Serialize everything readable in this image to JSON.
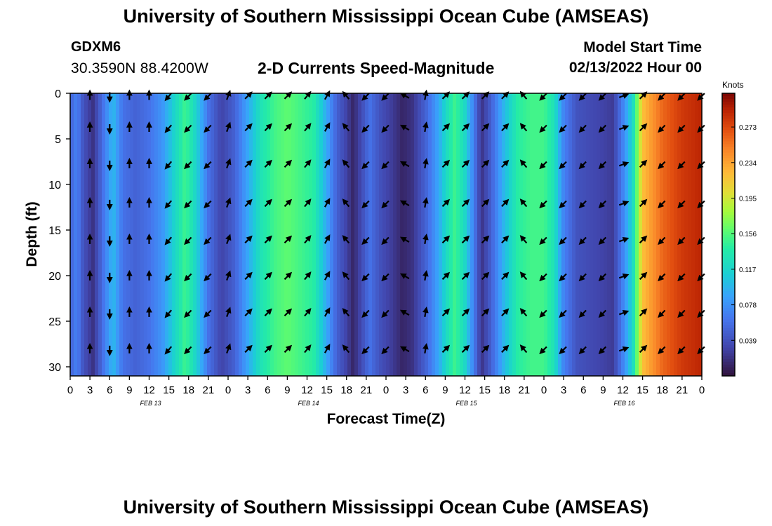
{
  "header": {
    "title": "University of Southern Mississippi Ocean Cube (AMSEAS)",
    "station": "GDXM6",
    "coordinates": "30.3590N  88.4200W",
    "subtitle": "2-D Currents Speed-Magnitude",
    "model_start_label": "Model Start Time",
    "model_start_value": "02/13/2022 Hour 00"
  },
  "footer": {
    "title": "University of Southern Mississippi Ocean Cube (AMSEAS)"
  },
  "chart_data": {
    "type": "heatmap",
    "title": "2-D Currents Speed-Magnitude",
    "xlabel": "Forecast Time(Z)",
    "ylabel": "Depth (ft)",
    "x_hours": [
      0,
      3,
      6,
      9,
      12,
      15,
      18,
      21,
      24,
      27,
      30,
      33,
      36,
      39,
      42,
      45,
      48,
      51,
      54,
      57,
      60,
      63,
      66,
      69,
      72,
      75,
      78,
      81,
      84,
      87,
      90,
      93,
      96
    ],
    "x_tick_labels": [
      "0",
      "3",
      "6",
      "9",
      "12",
      "15",
      "18",
      "21",
      "0",
      "3",
      "6",
      "9",
      "12",
      "15",
      "18",
      "21",
      "0",
      "3",
      "6",
      "9",
      "12",
      "15",
      "18",
      "21",
      "0",
      "3",
      "6",
      "9",
      "12",
      "15",
      "18",
      "21",
      "0"
    ],
    "xlim": [
      0,
      96
    ],
    "day_labels": [
      {
        "label": "FEB 13",
        "hour": 12
      },
      {
        "label": "FEB 14",
        "hour": 36
      },
      {
        "label": "FEB 15",
        "hour": 60
      },
      {
        "label": "FEB 16",
        "hour": 84
      }
    ],
    "y_ticks": [
      0,
      5,
      10,
      15,
      20,
      25,
      30
    ],
    "y_tick_labels": [
      "0",
      "5",
      "10",
      "15",
      "20",
      "25",
      "30"
    ],
    "ylim": [
      0,
      31
    ],
    "colorbar": {
      "label": "Knots",
      "ticks": [
        0.039,
        0.078,
        0.117,
        0.156,
        0.195,
        0.234,
        0.273
      ],
      "tick_labels": [
        "0.039",
        "0.078",
        "0.117",
        "0.156",
        "0.195",
        "0.234",
        "0.273"
      ],
      "range": [
        0,
        0.31
      ]
    },
    "speed_profile": [
      {
        "t": 0,
        "v": 0.05
      },
      {
        "t": 1,
        "v": 0.07
      },
      {
        "t": 2,
        "v": 0.04
      },
      {
        "t": 3.5,
        "v": 0.02
      },
      {
        "t": 5,
        "v": 0.06
      },
      {
        "t": 6.5,
        "v": 0.1
      },
      {
        "t": 8,
        "v": 0.06
      },
      {
        "t": 10,
        "v": 0.05
      },
      {
        "t": 12,
        "v": 0.06
      },
      {
        "t": 14,
        "v": 0.08
      },
      {
        "t": 16,
        "v": 0.12
      },
      {
        "t": 17.5,
        "v": 0.15
      },
      {
        "t": 19,
        "v": 0.12
      },
      {
        "t": 21,
        "v": 0.06
      },
      {
        "t": 23,
        "v": 0.03
      },
      {
        "t": 25,
        "v": 0.05
      },
      {
        "t": 27,
        "v": 0.09
      },
      {
        "t": 29,
        "v": 0.13
      },
      {
        "t": 31,
        "v": 0.15
      },
      {
        "t": 33,
        "v": 0.16
      },
      {
        "t": 35,
        "v": 0.15
      },
      {
        "t": 37,
        "v": 0.14
      },
      {
        "t": 39,
        "v": 0.09
      },
      {
        "t": 40.5,
        "v": 0.05
      },
      {
        "t": 42,
        "v": 0.03
      },
      {
        "t": 43,
        "v": 0.012
      },
      {
        "t": 44,
        "v": 0.03
      },
      {
        "t": 45.5,
        "v": 0.06
      },
      {
        "t": 47,
        "v": 0.04
      },
      {
        "t": 49,
        "v": 0.025
      },
      {
        "t": 50.5,
        "v": 0.012
      },
      {
        "t": 52,
        "v": 0.02
      },
      {
        "t": 54,
        "v": 0.05
      },
      {
        "t": 56,
        "v": 0.09
      },
      {
        "t": 57.5,
        "v": 0.13
      },
      {
        "t": 58.5,
        "v": 0.15
      },
      {
        "t": 60,
        "v": 0.12
      },
      {
        "t": 61.5,
        "v": 0.06
      },
      {
        "t": 62.5,
        "v": 0.02
      },
      {
        "t": 64,
        "v": 0.05
      },
      {
        "t": 66,
        "v": 0.1
      },
      {
        "t": 68,
        "v": 0.14
      },
      {
        "t": 70,
        "v": 0.15
      },
      {
        "t": 72,
        "v": 0.15
      },
      {
        "t": 73.5,
        "v": 0.13
      },
      {
        "t": 75,
        "v": 0.07
      },
      {
        "t": 77,
        "v": 0.04
      },
      {
        "t": 79,
        "v": 0.035
      },
      {
        "t": 81,
        "v": 0.03
      },
      {
        "t": 82.5,
        "v": 0.025
      },
      {
        "t": 84,
        "v": 0.07
      },
      {
        "t": 85.5,
        "v": 0.12
      },
      {
        "t": 87,
        "v": 0.22
      },
      {
        "t": 90,
        "v": 0.26
      },
      {
        "t": 93,
        "v": 0.28
      },
      {
        "t": 96,
        "v": 0.29
      }
    ],
    "vector_hours": [
      3,
      6,
      9,
      12,
      15,
      18,
      21,
      24,
      27,
      30,
      33,
      36,
      39,
      42,
      45,
      48,
      51,
      54,
      57,
      60,
      63,
      66,
      69,
      72,
      75,
      78,
      81,
      84,
      87,
      90,
      93,
      96
    ],
    "vector_depths": [
      0,
      3.5,
      7.5,
      11.8,
      15.8,
      19.8,
      23.8,
      27.8
    ],
    "vector_direction_by_hour": [
      {
        "t": 3,
        "deg": 0
      },
      {
        "t": 6,
        "deg": 180
      },
      {
        "t": 9,
        "deg": 0
      },
      {
        "t": 12,
        "deg": 0
      },
      {
        "t": 15,
        "deg": 220
      },
      {
        "t": 18,
        "deg": 225
      },
      {
        "t": 21,
        "deg": 225
      },
      {
        "t": 24,
        "deg": 20
      },
      {
        "t": 27,
        "deg": 45
      },
      {
        "t": 30,
        "deg": 45
      },
      {
        "t": 33,
        "deg": 45
      },
      {
        "t": 36,
        "deg": 40
      },
      {
        "t": 39,
        "deg": 30
      },
      {
        "t": 42,
        "deg": 320
      },
      {
        "t": 45,
        "deg": 225
      },
      {
        "t": 48,
        "deg": 225
      },
      {
        "t": 51,
        "deg": 300
      },
      {
        "t": 54,
        "deg": 10
      },
      {
        "t": 57,
        "deg": 45
      },
      {
        "t": 60,
        "deg": 45
      },
      {
        "t": 63,
        "deg": 45
      },
      {
        "t": 66,
        "deg": 45
      },
      {
        "t": 69,
        "deg": 320
      },
      {
        "t": 72,
        "deg": 225
      },
      {
        "t": 75,
        "deg": 225
      },
      {
        "t": 78,
        "deg": 225
      },
      {
        "t": 81,
        "deg": 225
      },
      {
        "t": 84,
        "deg": 70
      },
      {
        "t": 87,
        "deg": 45
      },
      {
        "t": 90,
        "deg": 225
      },
      {
        "t": 93,
        "deg": 225
      },
      {
        "t": 96,
        "deg": 225
      }
    ]
  }
}
